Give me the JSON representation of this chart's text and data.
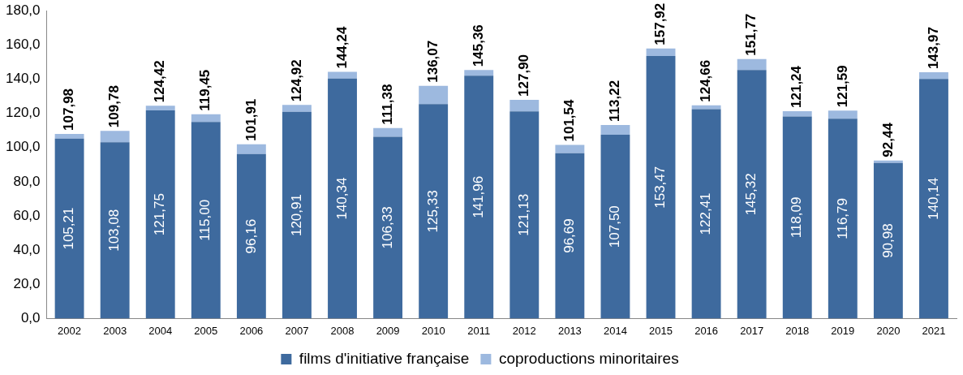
{
  "chart_data": {
    "type": "bar",
    "stacked": true,
    "categories": [
      "2002",
      "2003",
      "2004",
      "2005",
      "2006",
      "2007",
      "2008",
      "2009",
      "2010",
      "2011",
      "2012",
      "2013",
      "2014",
      "2015",
      "2016",
      "2017",
      "2018",
      "2019",
      "2020",
      "2021"
    ],
    "series": [
      {
        "name": "films d'initiative française",
        "color": "#3e6a9e",
        "values": [
          105.21,
          103.08,
          121.75,
          115.0,
          96.16,
          120.91,
          140.34,
          106.33,
          125.33,
          141.96,
          121.13,
          96.69,
          107.5,
          153.47,
          122.41,
          145.32,
          118.09,
          116.79,
          90.98,
          140.14
        ],
        "value_labels": [
          "105,21",
          "103,08",
          "121,75",
          "115,00",
          "96,16",
          "120,91",
          "140,34",
          "106,33",
          "125,33",
          "141,96",
          "121,13",
          "96,69",
          "107,50",
          "153,47",
          "122,41",
          "145,32",
          "118,09",
          "116,79",
          "90,98",
          "140,14"
        ]
      },
      {
        "name": "coproductions minoritaires",
        "color": "#9db9df",
        "values": [
          2.77,
          6.7,
          2.67,
          4.45,
          5.75,
          4.01,
          3.9,
          5.05,
          10.74,
          3.4,
          6.77,
          4.85,
          5.72,
          4.45,
          2.25,
          6.45,
          3.15,
          4.8,
          1.46,
          3.83
        ]
      }
    ],
    "totals": [
      "107,98",
      "109,78",
      "124,42",
      "119,45",
      "101,91",
      "124,92",
      "144,24",
      "111,38",
      "136,07",
      "145,36",
      "127,90",
      "101,54",
      "113,22",
      "157,92",
      "124,66",
      "151,77",
      "121,24",
      "121,59",
      "92,44",
      "143,97"
    ],
    "ylim": [
      0,
      180
    ],
    "yticks": [
      {
        "value": 0,
        "label": "0,0"
      },
      {
        "value": 20,
        "label": "20,0"
      },
      {
        "value": 40,
        "label": "40,0"
      },
      {
        "value": 60,
        "label": "60,0"
      },
      {
        "value": 80,
        "label": "80,0"
      },
      {
        "value": 100,
        "label": "100,0"
      },
      {
        "value": 120,
        "label": "120,0"
      },
      {
        "value": 140,
        "label": "140,0"
      },
      {
        "value": 160,
        "label": "160,0"
      },
      {
        "value": 180,
        "label": "180,0"
      }
    ],
    "grid": false,
    "legend": "bottom"
  }
}
